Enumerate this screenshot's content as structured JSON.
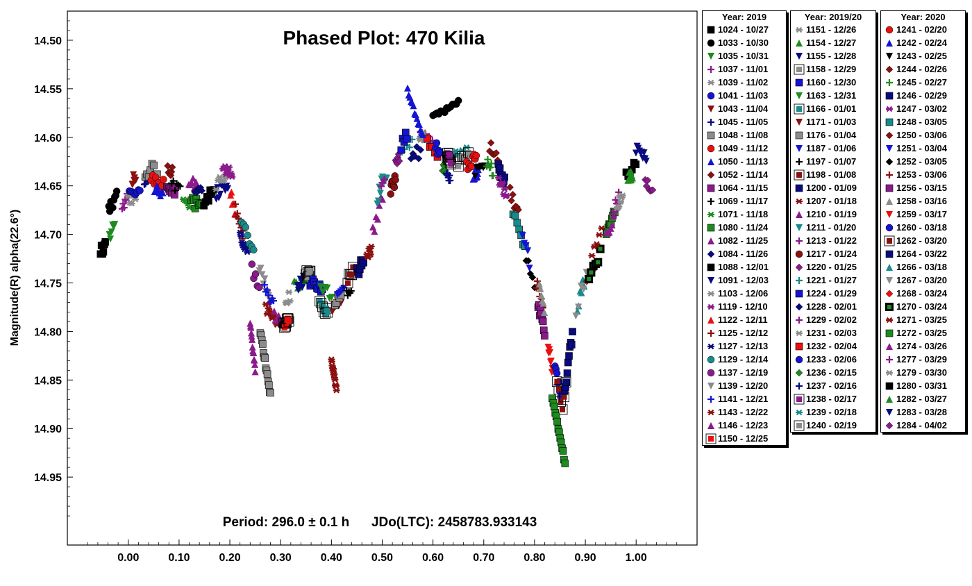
{
  "chart_data": {
    "type": "scatter",
    "title": "Phased Plot: 470 Kilia",
    "xlabel": "",
    "ylabel": "Magnitude(R) alpha(22.6°)",
    "xlim": [
      -0.12,
      1.12
    ],
    "ylim": [
      15.02,
      14.47
    ],
    "y_inverted": true,
    "grid": false,
    "x_ticks": [
      "0.00",
      "0.10",
      "0.20",
      "0.30",
      "0.40",
      "0.50",
      "0.60",
      "0.70",
      "0.80",
      "0.90",
      "1.00"
    ],
    "y_ticks": [
      "14.50",
      "14.55",
      "14.60",
      "14.65",
      "14.70",
      "14.75",
      "14.80",
      "14.85",
      "14.90",
      "14.95"
    ],
    "annotation": "Period: 296.0 ± 0.1 h      JDo(LTC): 2458783.933143",
    "curve": [
      [
        -0.05,
        14.7
      ],
      [
        0.0,
        14.655
      ],
      [
        0.05,
        14.64
      ],
      [
        0.1,
        14.655
      ],
      [
        0.15,
        14.665
      ],
      [
        0.18,
        14.648
      ],
      [
        0.2,
        14.645
      ],
      [
        0.22,
        14.69
      ],
      [
        0.25,
        14.74
      ],
      [
        0.28,
        14.78
      ],
      [
        0.3,
        14.785
      ],
      [
        0.33,
        14.765
      ],
      [
        0.36,
        14.755
      ],
      [
        0.38,
        14.765
      ],
      [
        0.4,
        14.775
      ],
      [
        0.43,
        14.755
      ],
      [
        0.46,
        14.72
      ],
      [
        0.48,
        14.7
      ],
      [
        0.5,
        14.66
      ],
      [
        0.53,
        14.63
      ],
      [
        0.56,
        14.6
      ],
      [
        0.58,
        14.605
      ],
      [
        0.6,
        14.615
      ],
      [
        0.62,
        14.625
      ],
      [
        0.65,
        14.635
      ],
      [
        0.68,
        14.625
      ],
      [
        0.7,
        14.615
      ],
      [
        0.72,
        14.63
      ],
      [
        0.75,
        14.66
      ],
      [
        0.78,
        14.7
      ],
      [
        0.8,
        14.745
      ],
      [
        0.82,
        14.79
      ],
      [
        0.84,
        14.84
      ],
      [
        0.855,
        14.88
      ],
      [
        0.87,
        14.82
      ],
      [
        0.89,
        14.76
      ],
      [
        0.92,
        14.72
      ],
      [
        0.95,
        14.68
      ],
      [
        0.98,
        14.64
      ],
      [
        1.0,
        14.625
      ],
      [
        1.04,
        14.645
      ]
    ],
    "features": [
      {
        "x0": 0.24,
        "x1": 0.25,
        "y0": 14.79,
        "y1": 14.84
      },
      {
        "x0": 0.26,
        "x1": 0.28,
        "y0": 14.8,
        "y1": 14.865
      },
      {
        "x0": 0.835,
        "x1": 0.86,
        "y0": 14.87,
        "y1": 14.935
      },
      {
        "x0": 0.55,
        "x1": 0.58,
        "y0": 14.55,
        "y1": 14.6
      },
      {
        "x0": 0.4,
        "x1": 0.41,
        "y0": 14.83,
        "y1": 14.86
      },
      {
        "x0": 0.6,
        "x1": 0.65,
        "y0": 14.58,
        "y1": 14.565
      }
    ],
    "legend": [
      {
        "title": "Year: 2019",
        "entries": [
          {
            "label": "1024 - 10/27",
            "color": "#000000",
            "marker": "square"
          },
          {
            "label": "1033 - 10/30",
            "color": "#000000",
            "marker": "circle"
          },
          {
            "label": "1035 - 10/31",
            "color": "#1f8a1f",
            "marker": "triangle-down"
          },
          {
            "label": "1037 - 11/01",
            "color": "#8b1a8b",
            "marker": "plus"
          },
          {
            "label": "1039 - 11/02",
            "color": "#8c8c8c",
            "marker": "asterisk"
          },
          {
            "label": "1041 - 11/03",
            "color": "#1414d2",
            "marker": "circle"
          },
          {
            "label": "1043 - 11/04",
            "color": "#8b1010",
            "marker": "triangle-down"
          },
          {
            "label": "1045 - 11/05",
            "color": "#0a0a80",
            "marker": "plus"
          },
          {
            "label": "1048 - 11/08",
            "color": "#8c8c8c",
            "marker": "square"
          },
          {
            "label": "1049 - 11/12",
            "color": "#e81010",
            "marker": "circle"
          },
          {
            "label": "1050 - 11/13",
            "color": "#1414d2",
            "marker": "triangle"
          },
          {
            "label": "1052 - 11/14",
            "color": "#8b1010",
            "marker": "diamond"
          },
          {
            "label": "1064 - 11/15",
            "color": "#8b1a8b",
            "marker": "square"
          },
          {
            "label": "1069 - 11/17",
            "color": "#000000",
            "marker": "plus"
          },
          {
            "label": "1071 - 11/18",
            "color": "#1f8a1f",
            "marker": "asterisk"
          },
          {
            "label": "1080 - 11/24",
            "color": "#1f8a1f",
            "marker": "square"
          },
          {
            "label": "1082 - 11/25",
            "color": "#8b1a8b",
            "marker": "triangle"
          },
          {
            "label": "1084 - 11/26",
            "color": "#0a0a80",
            "marker": "diamond"
          },
          {
            "label": "1088 - 12/01",
            "color": "#000000",
            "marker": "square"
          },
          {
            "label": "1091 - 12/03",
            "color": "#0a0a80",
            "marker": "triangle-down"
          },
          {
            "label": "1103 - 12/06",
            "color": "#8c8c8c",
            "marker": "asterisk"
          },
          {
            "label": "1119 - 12/10",
            "color": "#8b1a8b",
            "marker": "asterisk"
          },
          {
            "label": "1122 - 12/11",
            "color": "#e81010",
            "marker": "triangle"
          },
          {
            "label": "1125 - 12/12",
            "color": "#8b1010",
            "marker": "plus"
          },
          {
            "label": "1127 - 12/13",
            "color": "#0a0a80",
            "marker": "asterisk"
          },
          {
            "label": "1129 - 12/14",
            "color": "#1a8a8a",
            "marker": "circle"
          },
          {
            "label": "1137 - 12/19",
            "color": "#8b1a8b",
            "marker": "circle"
          },
          {
            "label": "1139 - 12/20",
            "color": "#8c8c8c",
            "marker": "triangle-down"
          },
          {
            "label": "1141 - 12/21",
            "color": "#1414d2",
            "marker": "plus"
          },
          {
            "label": "1143 - 12/22",
            "color": "#8b1010",
            "marker": "asterisk"
          },
          {
            "label": "1146 - 12/23",
            "color": "#8b1a8b",
            "marker": "triangle"
          },
          {
            "label": "1150 - 12/25",
            "color": "#e81010",
            "marker": "square-boxed"
          }
        ]
      },
      {
        "title": "Year: 2019/20",
        "entries": [
          {
            "label": "1151 - 12/26",
            "color": "#8c8c8c",
            "marker": "asterisk"
          },
          {
            "label": "1154 - 12/27",
            "color": "#1f8a1f",
            "marker": "triangle"
          },
          {
            "label": "1155 - 12/28",
            "color": "#0a0a80",
            "marker": "triangle-down"
          },
          {
            "label": "1158 - 12/29",
            "color": "#8c8c8c",
            "marker": "square-boxed"
          },
          {
            "label": "1160 - 12/30",
            "color": "#1414d2",
            "marker": "square"
          },
          {
            "label": "1163 - 12/31",
            "color": "#1f8a1f",
            "marker": "triangle-down"
          },
          {
            "label": "1166 - 01/01",
            "color": "#1a8a8a",
            "marker": "square-boxed"
          },
          {
            "label": "1171 - 01/03",
            "color": "#8b1010",
            "marker": "triangle-down"
          },
          {
            "label": "1176 - 01/04",
            "color": "#8c8c8c",
            "marker": "square"
          },
          {
            "label": "1187 - 01/06",
            "color": "#1414d2",
            "marker": "triangle-down"
          },
          {
            "label": "1197 - 01/07",
            "color": "#000000",
            "marker": "plus"
          },
          {
            "label": "1198 - 01/08",
            "color": "#8b1010",
            "marker": "square-boxed"
          },
          {
            "label": "1200 - 01/09",
            "color": "#0a0a80",
            "marker": "square"
          },
          {
            "label": "1207 - 01/18",
            "color": "#8b1010",
            "marker": "asterisk"
          },
          {
            "label": "1210 - 01/19",
            "color": "#8b1a8b",
            "marker": "triangle"
          },
          {
            "label": "1211 - 01/20",
            "color": "#1a8a8a",
            "marker": "triangle-down"
          },
          {
            "label": "1213 - 01/22",
            "color": "#8b1a8b",
            "marker": "plus"
          },
          {
            "label": "1217 - 01/24",
            "color": "#8b1010",
            "marker": "circle"
          },
          {
            "label": "1220 - 01/25",
            "color": "#8b1a8b",
            "marker": "diamond"
          },
          {
            "label": "1221 - 01/27",
            "color": "#1a8a8a",
            "marker": "plus"
          },
          {
            "label": "1224 - 01/29",
            "color": "#1414d2",
            "marker": "square"
          },
          {
            "label": "1228 - 02/01",
            "color": "#0a0a80",
            "marker": "diamond"
          },
          {
            "label": "1229 - 02/02",
            "color": "#8b1a8b",
            "marker": "plus"
          },
          {
            "label": "1231 - 02/03",
            "color": "#8c8c8c",
            "marker": "asterisk"
          },
          {
            "label": "1232 - 02/04",
            "color": "#e81010",
            "marker": "square"
          },
          {
            "label": "1233 - 02/06",
            "color": "#1414d2",
            "marker": "circle"
          },
          {
            "label": "1236 - 02/15",
            "color": "#1f8a1f",
            "marker": "diamond"
          },
          {
            "label": "1237 - 02/16",
            "color": "#0a0a80",
            "marker": "plus"
          },
          {
            "label": "1238 - 02/17",
            "color": "#8b1a8b",
            "marker": "square-boxed"
          },
          {
            "label": "1239 - 02/18",
            "color": "#1a8a8a",
            "marker": "asterisk"
          },
          {
            "label": "1240 - 02/19",
            "color": "#8c8c8c",
            "marker": "square-boxed"
          }
        ]
      },
      {
        "title": "Year: 2020",
        "entries": [
          {
            "label": "1241 - 02/20",
            "color": "#e81010",
            "marker": "circle"
          },
          {
            "label": "1242 - 02/24",
            "color": "#1414d2",
            "marker": "triangle"
          },
          {
            "label": "1243 - 02/25",
            "color": "#000000",
            "marker": "triangle-down"
          },
          {
            "label": "1244 - 02/26",
            "color": "#8b1010",
            "marker": "diamond"
          },
          {
            "label": "1245 - 02/27",
            "color": "#1f8a1f",
            "marker": "plus"
          },
          {
            "label": "1246 - 02/29",
            "color": "#0a0a80",
            "marker": "square"
          },
          {
            "label": "1247 - 03/02",
            "color": "#8b1a8b",
            "marker": "asterisk"
          },
          {
            "label": "1248 - 03/05",
            "color": "#1a8a8a",
            "marker": "square"
          },
          {
            "label": "1250 - 03/06",
            "color": "#8b1010",
            "marker": "diamond"
          },
          {
            "label": "1251 - 03/04",
            "color": "#1414d2",
            "marker": "triangle-down"
          },
          {
            "label": "1252 - 03/05",
            "color": "#000000",
            "marker": "diamond"
          },
          {
            "label": "1253 - 03/06",
            "color": "#8b1010",
            "marker": "plus"
          },
          {
            "label": "1256 - 03/15",
            "color": "#8b1a8b",
            "marker": "square"
          },
          {
            "label": "1258 - 03/16",
            "color": "#8c8c8c",
            "marker": "triangle"
          },
          {
            "label": "1259 - 03/17",
            "color": "#e81010",
            "marker": "triangle-down"
          },
          {
            "label": "1260 - 03/18",
            "color": "#1414d2",
            "marker": "circle"
          },
          {
            "label": "1262 - 03/20",
            "color": "#8b1010",
            "marker": "square-boxed"
          },
          {
            "label": "1264 - 03/22",
            "color": "#0a0a80",
            "marker": "square"
          },
          {
            "label": "1266 - 03/18",
            "color": "#1a8a8a",
            "marker": "triangle"
          },
          {
            "label": "1267 - 03/20",
            "color": "#8c8c8c",
            "marker": "triangle-down"
          },
          {
            "label": "1268 - 03/24",
            "color": "#e81010",
            "marker": "diamond"
          },
          {
            "label": "1270 - 03/24",
            "color": "#1f8a1f",
            "marker": "square-boxed-black"
          },
          {
            "label": "1271 - 03/25",
            "color": "#8b1010",
            "marker": "asterisk"
          },
          {
            "label": "1272 - 03/25",
            "color": "#1f8a1f",
            "marker": "square"
          },
          {
            "label": "1274 - 03/26",
            "color": "#8b1a8b",
            "marker": "triangle"
          },
          {
            "label": "1277 - 03/29",
            "color": "#8b1a8b",
            "marker": "plus"
          },
          {
            "label": "1279 - 03/30",
            "color": "#8c8c8c",
            "marker": "asterisk"
          },
          {
            "label": "1280 - 03/31",
            "color": "#000000",
            "marker": "square"
          },
          {
            "label": "1282 - 03/27",
            "color": "#1f8a1f",
            "marker": "triangle"
          },
          {
            "label": "1283 - 03/28",
            "color": "#0a0a80",
            "marker": "triangle-down"
          },
          {
            "label": "1284 - 04/02",
            "color": "#8b1a8b",
            "marker": "diamond"
          }
        ]
      }
    ]
  }
}
